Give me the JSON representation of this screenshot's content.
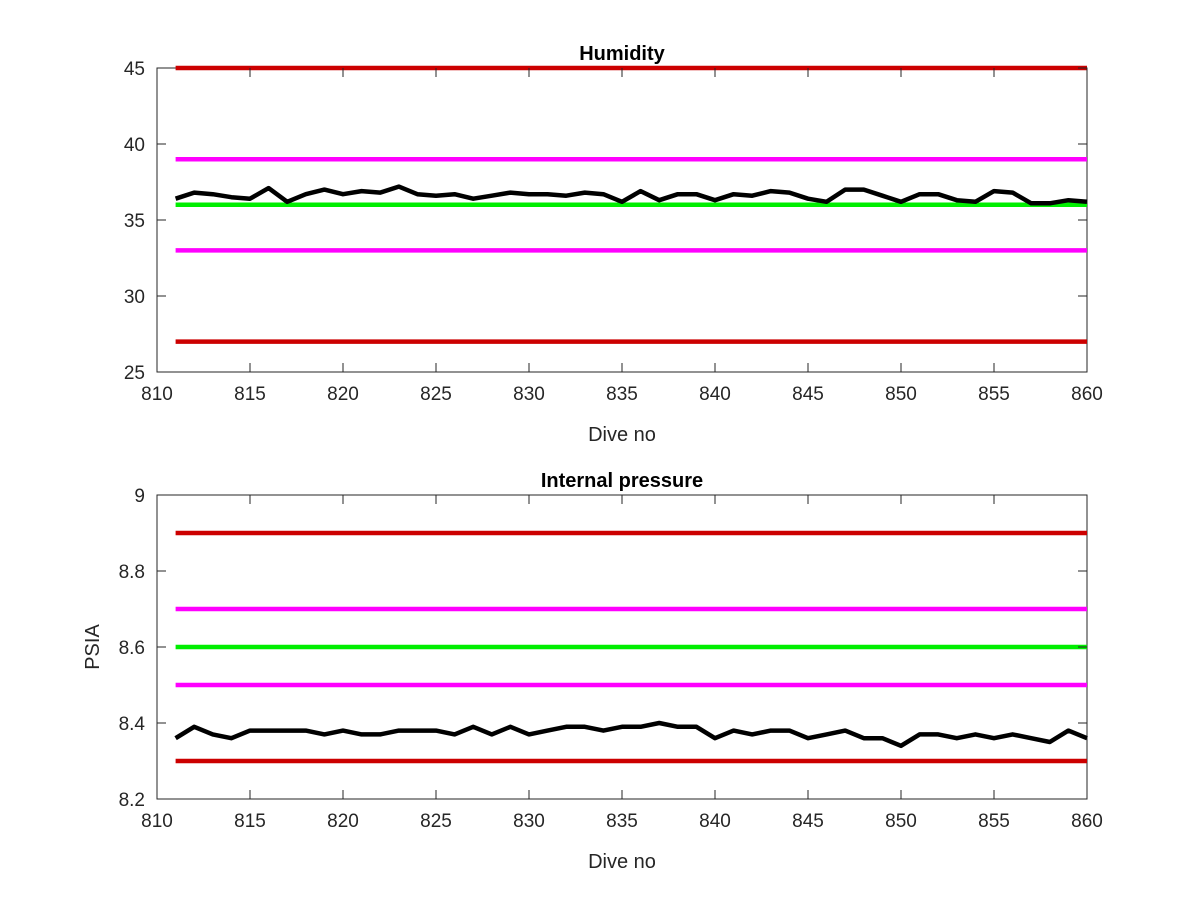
{
  "chart_data": [
    {
      "type": "line",
      "title": "Humidity",
      "xlabel": "Dive no",
      "ylabel": "",
      "xlim": [
        810,
        860
      ],
      "ylim": [
        25,
        45
      ],
      "xticks": [
        "810",
        "815",
        "820",
        "825",
        "830",
        "835",
        "840",
        "845",
        "850",
        "855",
        "860"
      ],
      "yticks": [
        "25",
        "30",
        "35",
        "40",
        "45"
      ],
      "grid": false,
      "reference_lines": [
        {
          "y": 45,
          "color": "#cc0000"
        },
        {
          "y": 39,
          "color": "#ff00ff"
        },
        {
          "y": 36,
          "color": "#00ee00"
        },
        {
          "y": 33,
          "color": "#ff00ff"
        },
        {
          "y": 27,
          "color": "#cc0000"
        }
      ],
      "series": [
        {
          "color": "#000000",
          "x": [
            811,
            812,
            813,
            814,
            815,
            816,
            817,
            818,
            819,
            820,
            821,
            822,
            823,
            824,
            825,
            826,
            827,
            828,
            829,
            830,
            831,
            832,
            833,
            834,
            835,
            836,
            837,
            838,
            839,
            840,
            841,
            842,
            843,
            844,
            845,
            846,
            847,
            848,
            849,
            850,
            851,
            852,
            853,
            854,
            855,
            856,
            857,
            858,
            859,
            860
          ],
          "values": [
            36.4,
            36.8,
            36.7,
            36.5,
            36.4,
            37.1,
            36.2,
            36.7,
            37.0,
            36.7,
            36.9,
            36.8,
            37.2,
            36.7,
            36.6,
            36.7,
            36.4,
            36.6,
            36.8,
            36.7,
            36.7,
            36.6,
            36.8,
            36.7,
            36.2,
            36.9,
            36.3,
            36.7,
            36.7,
            36.3,
            36.7,
            36.6,
            36.9,
            36.8,
            36.4,
            36.2,
            37.0,
            37.0,
            36.6,
            36.2,
            36.7,
            36.7,
            36.3,
            36.2,
            36.9,
            36.8,
            36.1,
            36.1,
            36.3,
            36.2
          ]
        }
      ]
    },
    {
      "type": "line",
      "title": "Internal pressure",
      "xlabel": "Dive no",
      "ylabel": "PSIA",
      "xlim": [
        810,
        860
      ],
      "ylim": [
        8.2,
        9.0
      ],
      "xticks": [
        "810",
        "815",
        "820",
        "825",
        "830",
        "835",
        "840",
        "845",
        "850",
        "855",
        "860"
      ],
      "yticks": [
        "8.2",
        "8.4",
        "8.6",
        "8.8",
        "9"
      ],
      "grid": false,
      "reference_lines": [
        {
          "y": 8.9,
          "color": "#cc0000"
        },
        {
          "y": 8.7,
          "color": "#ff00ff"
        },
        {
          "y": 8.6,
          "color": "#00ee00"
        },
        {
          "y": 8.5,
          "color": "#ff00ff"
        },
        {
          "y": 8.3,
          "color": "#cc0000"
        }
      ],
      "series": [
        {
          "color": "#000000",
          "x": [
            811,
            812,
            813,
            814,
            815,
            816,
            817,
            818,
            819,
            820,
            821,
            822,
            823,
            824,
            825,
            826,
            827,
            828,
            829,
            830,
            831,
            832,
            833,
            834,
            835,
            836,
            837,
            838,
            839,
            840,
            841,
            842,
            843,
            844,
            845,
            846,
            847,
            848,
            849,
            850,
            851,
            852,
            853,
            854,
            855,
            856,
            857,
            858,
            859,
            860
          ],
          "values": [
            8.36,
            8.39,
            8.37,
            8.36,
            8.38,
            8.38,
            8.38,
            8.38,
            8.37,
            8.38,
            8.37,
            8.37,
            8.38,
            8.38,
            8.38,
            8.37,
            8.39,
            8.37,
            8.39,
            8.37,
            8.38,
            8.39,
            8.39,
            8.38,
            8.39,
            8.39,
            8.4,
            8.39,
            8.39,
            8.36,
            8.38,
            8.37,
            8.38,
            8.38,
            8.36,
            8.37,
            8.38,
            8.36,
            8.36,
            8.34,
            8.37,
            8.37,
            8.36,
            8.37,
            8.36,
            8.37,
            8.36,
            8.35,
            8.38,
            8.36
          ]
        }
      ]
    }
  ]
}
